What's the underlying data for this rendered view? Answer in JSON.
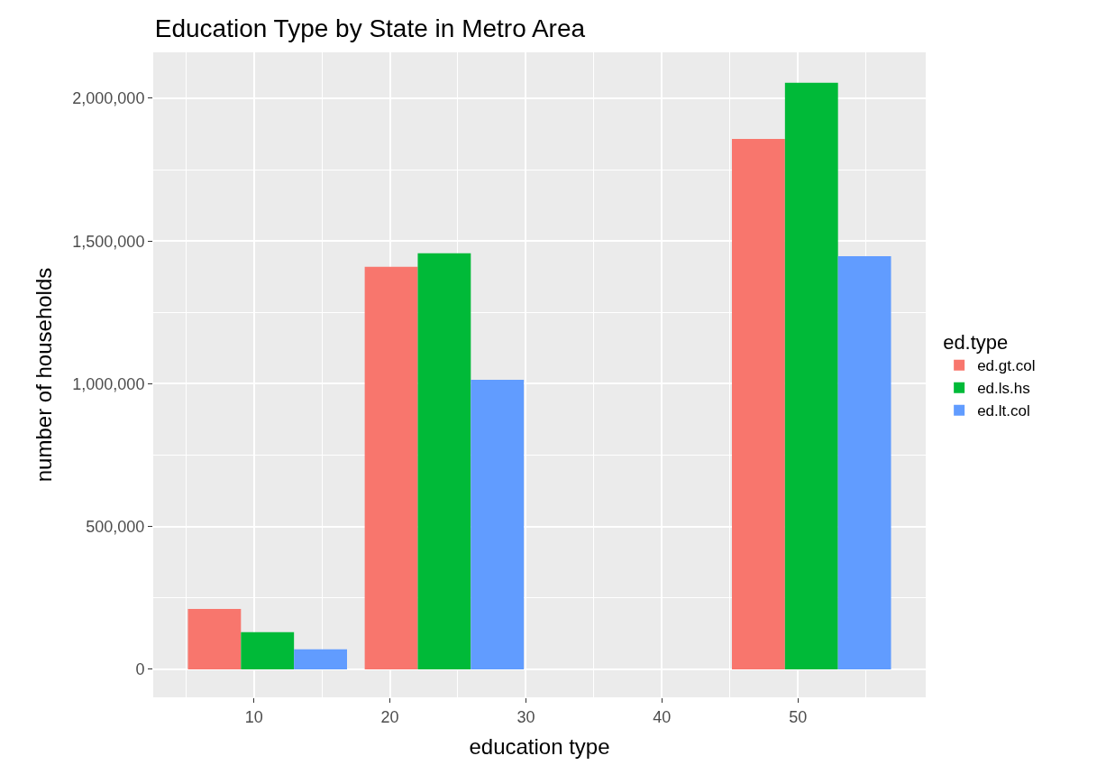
{
  "chart_data": {
    "type": "bar",
    "title": "Education Type by State in Metro Area",
    "xlabel": "education type",
    "ylabel": "number of households",
    "legend_title": "ed.type",
    "x": [
      11,
      24,
      51
    ],
    "series": [
      {
        "name": "ed.gt.col",
        "color": "#f8766d",
        "values": [
          212000,
          1410000,
          1858000
        ]
      },
      {
        "name": "ed.ls.hs",
        "color": "#00ba38",
        "values": [
          130000,
          1457000,
          2054000
        ]
      },
      {
        "name": "ed.lt.col",
        "color": "#619cff",
        "values": [
          70000,
          1014000,
          1447000
        ]
      }
    ],
    "xlim": [
      2.6,
      59.4
    ],
    "xticks": [
      10,
      20,
      30,
      40,
      50
    ],
    "ylim": [
      -98000,
      2161000
    ],
    "yticks": [
      {
        "value": 0,
        "label": "0"
      },
      {
        "value": 500000,
        "label": "500,000"
      },
      {
        "value": 1000000,
        "label": "1,000,000"
      },
      {
        "value": 1500000,
        "label": "1,500,000"
      },
      {
        "value": 2000000,
        "label": "2,000,000"
      }
    ],
    "grid": true,
    "legend": "right"
  }
}
